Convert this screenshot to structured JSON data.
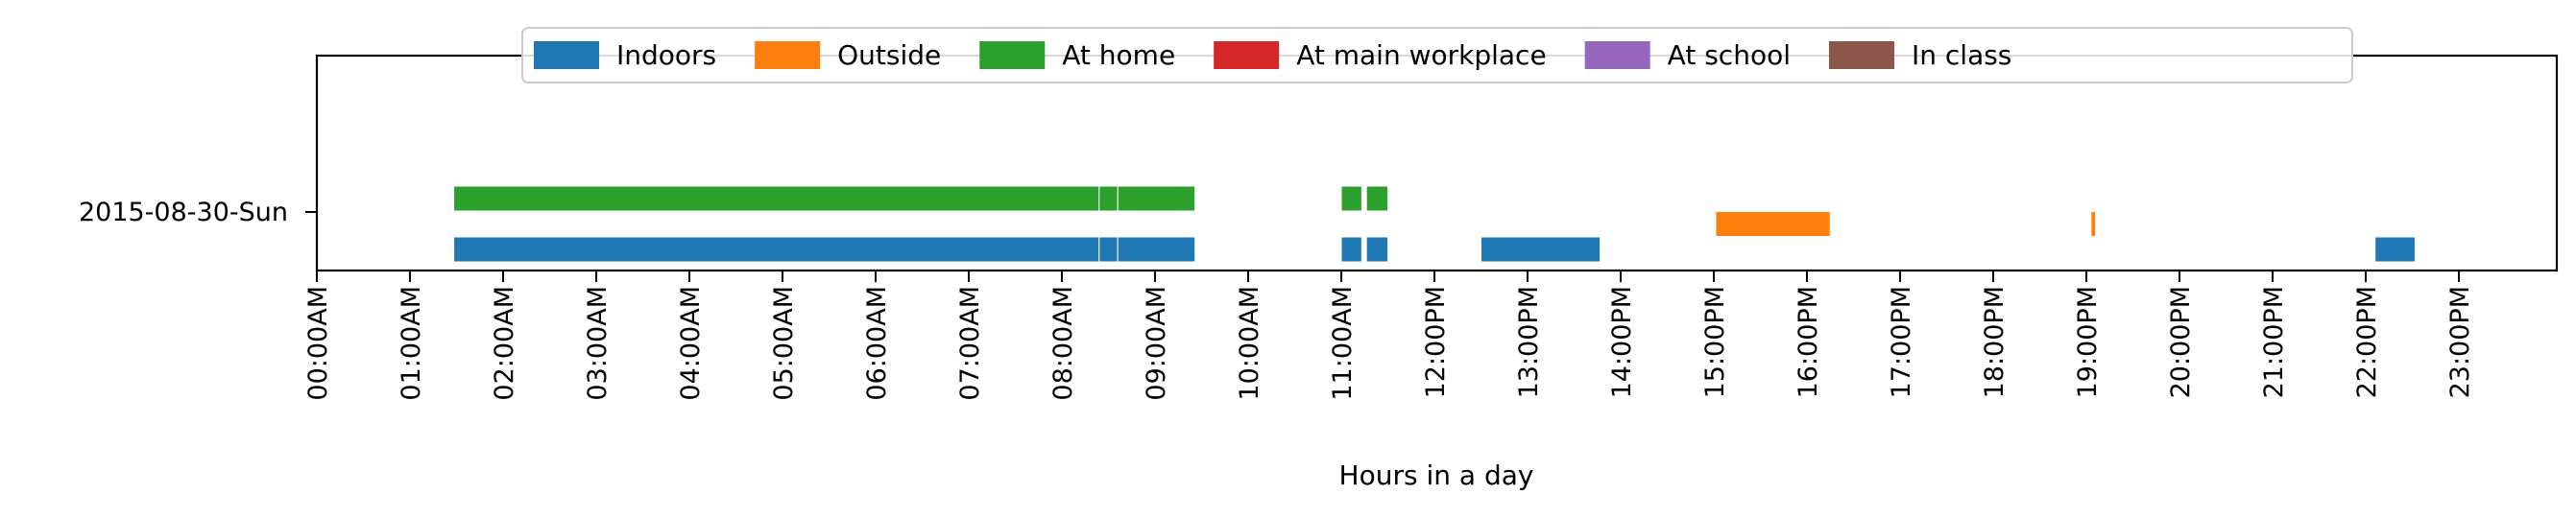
{
  "chart_data": {
    "type": "timeline",
    "title": "",
    "xlabel": "Hours in a day",
    "ylabel": "",
    "xlim": [
      0,
      24
    ],
    "grid": false,
    "legend_placement": "top-center",
    "row_label": "2015-08-30-Sun",
    "tick_labels": [
      "00:00AM",
      "01:00AM",
      "02:00AM",
      "03:00AM",
      "04:00AM",
      "05:00AM",
      "06:00AM",
      "07:00AM",
      "08:00AM",
      "09:00AM",
      "10:00AM",
      "11:00AM",
      "12:00PM",
      "13:00PM",
      "14:00PM",
      "15:00PM",
      "16:00PM",
      "17:00PM",
      "18:00PM",
      "19:00PM",
      "20:00PM",
      "21:00PM",
      "22:00PM",
      "23:00PM"
    ],
    "series": [
      {
        "name": "Indoors",
        "color": "#1f77b4",
        "lane": 0,
        "intervals": [
          [
            1.47,
            8.4
          ],
          [
            8.4,
            8.6
          ],
          [
            8.6,
            9.43
          ],
          [
            11.0,
            11.22
          ],
          [
            11.27,
            11.5
          ],
          [
            12.5,
            13.78
          ],
          [
            22.1,
            22.53
          ]
        ]
      },
      {
        "name": "Outside",
        "color": "#ff7f0e",
        "lane": 1,
        "intervals": [
          [
            15.02,
            16.25
          ],
          [
            19.05,
            19.1
          ]
        ]
      },
      {
        "name": "At home",
        "color": "#2ca02c",
        "lane": 2,
        "intervals": [
          [
            1.47,
            8.4
          ],
          [
            8.4,
            8.6
          ],
          [
            8.6,
            9.43
          ],
          [
            11.0,
            11.22
          ],
          [
            11.27,
            11.5
          ]
        ]
      },
      {
        "name": "At main workplace",
        "color": "#d62728",
        "lane": 3,
        "intervals": []
      },
      {
        "name": "At school",
        "color": "#9467bd",
        "lane": 4,
        "intervals": []
      },
      {
        "name": "In class",
        "color": "#8c564b",
        "lane": 5,
        "intervals": []
      }
    ]
  }
}
